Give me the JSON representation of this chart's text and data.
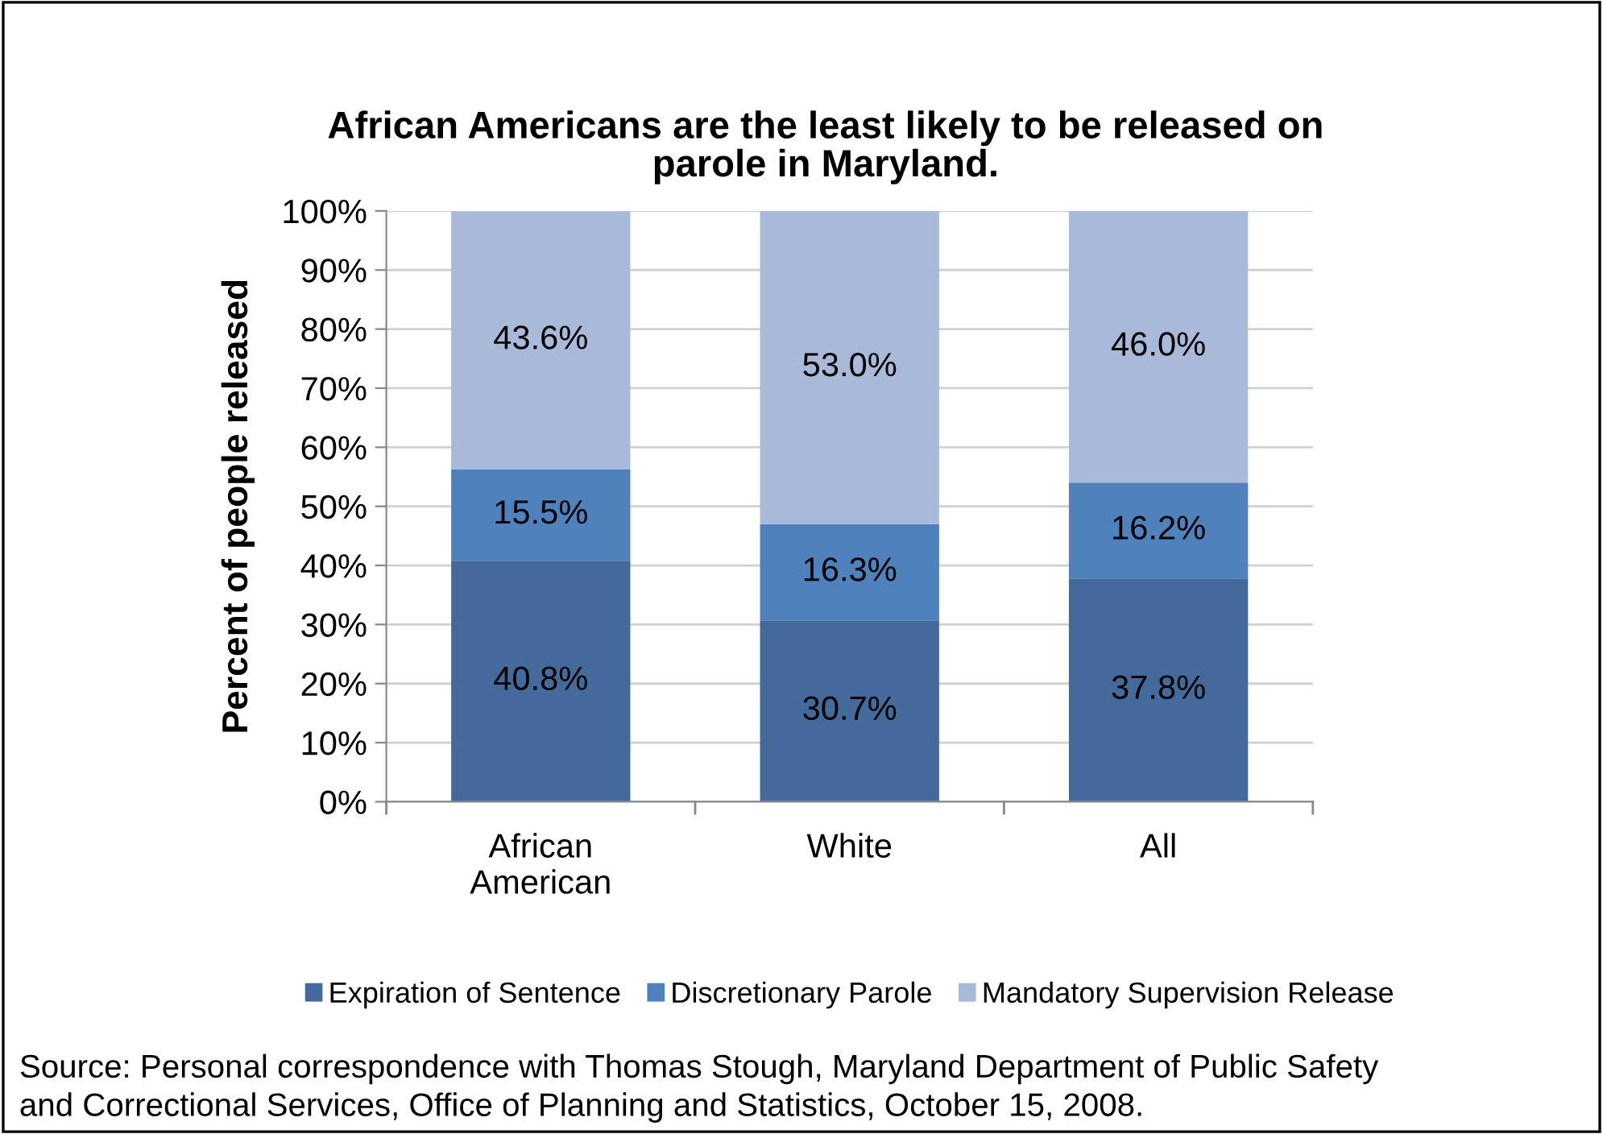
{
  "chart_data": {
    "type": "bar",
    "stacked": true,
    "title": "African Americans are the least likely to be released on\nparole in Maryland.",
    "ylabel": "Percent of people released",
    "categories": [
      "African\nAmerican",
      "White",
      "All"
    ],
    "series": [
      {
        "name": "Expiration of Sentence",
        "color": "#44699b",
        "values": [
          40.8,
          30.7,
          37.8
        ],
        "value_labels": [
          "40.8%",
          "30.7%",
          "37.8%"
        ]
      },
      {
        "name": "Discretionary Parole",
        "color": "#4f81bd",
        "values": [
          15.5,
          16.3,
          16.2
        ],
        "value_labels": [
          "15.5%",
          "16.3%",
          "16.2%"
        ]
      },
      {
        "name": "Mandatory Supervision Release",
        "color": "#a9b9d9",
        "values": [
          43.6,
          53.0,
          46.0
        ],
        "value_labels": [
          "43.6%",
          "53.0%",
          "46.0%"
        ]
      }
    ],
    "ylim": [
      0,
      100
    ],
    "yticks": [
      {
        "value": 0,
        "label": "0%"
      },
      {
        "value": 10,
        "label": "10%"
      },
      {
        "value": 20,
        "label": "20%"
      },
      {
        "value": 30,
        "label": "30%"
      },
      {
        "value": 40,
        "label": "40%"
      },
      {
        "value": 50,
        "label": "50%"
      },
      {
        "value": 60,
        "label": "60%"
      },
      {
        "value": 70,
        "label": "70%"
      },
      {
        "value": 80,
        "label": "80%"
      },
      {
        "value": 90,
        "label": "90%"
      },
      {
        "value": 100,
        "label": "100%"
      }
    ],
    "grid": "y",
    "legend": "bottom",
    "annotations": [
      "Source: Personal correspondence with Thomas Stough, Maryland Department of Public Safety\nand Correctional Services, Office of Planning and Statistics, October 15, 2008."
    ]
  }
}
